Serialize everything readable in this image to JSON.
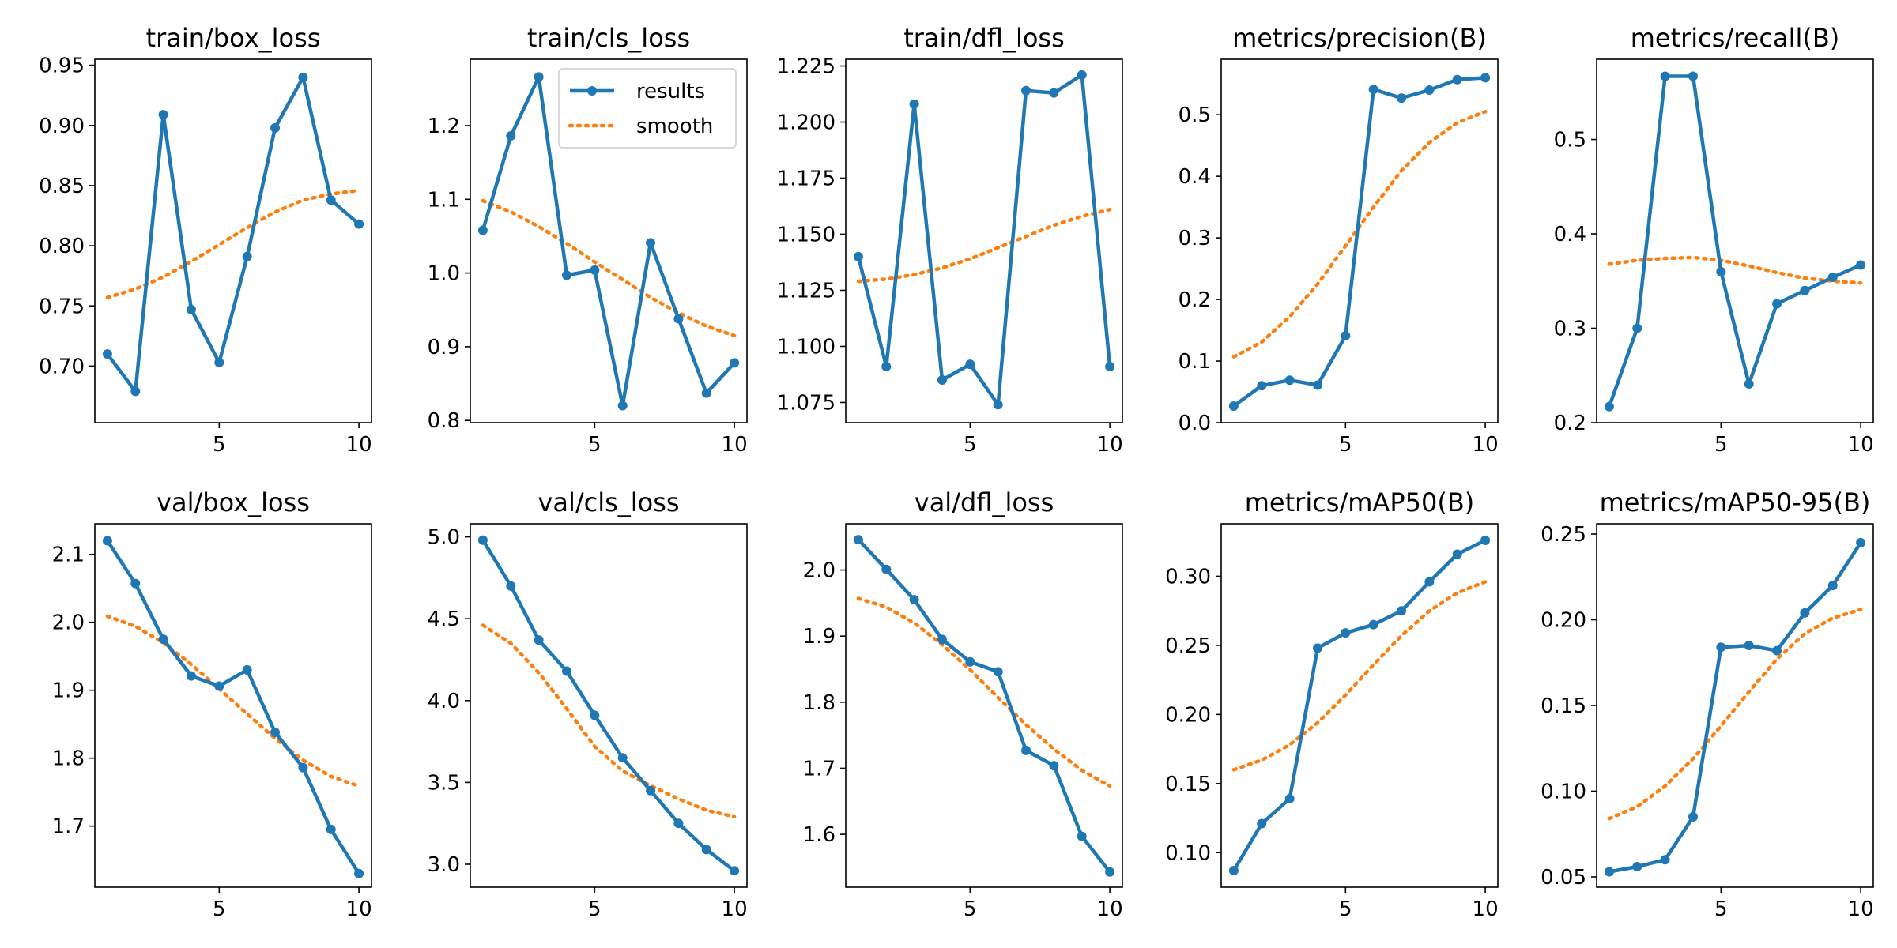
{
  "chart_data": [
    {
      "type": "line",
      "title": "train/box_loss",
      "x": [
        1,
        2,
        3,
        4,
        5,
        6,
        7,
        8,
        9,
        10
      ],
      "xticks": [
        5,
        10
      ],
      "xlim": [
        0.55,
        10.45
      ],
      "ylim": [
        0.653,
        0.955
      ],
      "yticks": [
        0.7,
        0.75,
        0.8,
        0.85,
        0.9,
        0.95
      ],
      "ytick_labels": [
        "0.70",
        "0.75",
        "0.80",
        "0.85",
        "0.90",
        "0.95"
      ],
      "series": [
        {
          "name": "results",
          "values": [
            0.71,
            0.679,
            0.909,
            0.747,
            0.703,
            0.791,
            0.898,
            0.94,
            0.838,
            0.818
          ]
        },
        {
          "name": "smooth",
          "values": [
            0.757,
            0.764,
            0.774,
            0.787,
            0.801,
            0.815,
            0.828,
            0.838,
            0.843,
            0.846
          ]
        }
      ]
    },
    {
      "type": "line",
      "title": "train/cls_loss",
      "x": [
        1,
        2,
        3,
        4,
        5,
        6,
        7,
        8,
        9,
        10
      ],
      "xticks": [
        5,
        10
      ],
      "xlim": [
        0.55,
        10.45
      ],
      "ylim": [
        0.797,
        1.29
      ],
      "yticks": [
        0.8,
        0.9,
        1.0,
        1.1,
        1.2
      ],
      "ytick_labels": [
        "0.8",
        "0.9",
        "1.0",
        "1.1",
        "1.2"
      ],
      "legend": {
        "entries": [
          "results",
          "smooth"
        ],
        "placement": "top-right"
      },
      "series": [
        {
          "name": "results",
          "values": [
            1.058,
            1.186,
            1.266,
            0.997,
            1.004,
            0.82,
            1.041,
            0.938,
            0.837,
            0.878
          ]
        },
        {
          "name": "smooth",
          "values": [
            1.098,
            1.083,
            1.063,
            1.04,
            1.015,
            0.991,
            0.967,
            0.946,
            0.928,
            0.915
          ]
        }
      ]
    },
    {
      "type": "line",
      "title": "train/dfl_loss",
      "x": [
        1,
        2,
        3,
        4,
        5,
        6,
        7,
        8,
        9,
        10
      ],
      "xticks": [
        5,
        10
      ],
      "xlim": [
        0.55,
        10.45
      ],
      "ylim": [
        1.066,
        1.228
      ],
      "yticks": [
        1.075,
        1.1,
        1.125,
        1.15,
        1.175,
        1.2,
        1.225
      ],
      "ytick_labels": [
        "1.075",
        "1.100",
        "1.125",
        "1.150",
        "1.175",
        "1.200",
        "1.225"
      ],
      "series": [
        {
          "name": "results",
          "values": [
            1.14,
            1.091,
            1.208,
            1.085,
            1.092,
            1.074,
            1.214,
            1.213,
            1.221,
            1.091
          ]
        },
        {
          "name": "smooth",
          "values": [
            1.129,
            1.13,
            1.132,
            1.135,
            1.139,
            1.144,
            1.149,
            1.154,
            1.158,
            1.161
          ]
        }
      ]
    },
    {
      "type": "line",
      "title": "metrics/precision(B)",
      "x": [
        1,
        2,
        3,
        4,
        5,
        6,
        7,
        8,
        9,
        10
      ],
      "xticks": [
        5,
        10
      ],
      "xlim": [
        0.55,
        10.45
      ],
      "ylim": [
        0.0,
        0.59
      ],
      "yticks": [
        0.0,
        0.1,
        0.2,
        0.3,
        0.4,
        0.5
      ],
      "ytick_labels": [
        "0.0",
        "0.1",
        "0.2",
        "0.3",
        "0.4",
        "0.5"
      ],
      "series": [
        {
          "name": "results",
          "values": [
            0.027,
            0.06,
            0.069,
            0.061,
            0.141,
            0.541,
            0.527,
            0.54,
            0.557,
            0.56
          ]
        },
        {
          "name": "smooth",
          "values": [
            0.107,
            0.131,
            0.172,
            0.225,
            0.287,
            0.35,
            0.409,
            0.455,
            0.487,
            0.505
          ]
        }
      ]
    },
    {
      "type": "line",
      "title": "metrics/recall(B)",
      "x": [
        1,
        2,
        3,
        4,
        5,
        6,
        7,
        8,
        9,
        10
      ],
      "xticks": [
        5,
        10
      ],
      "xlim": [
        0.55,
        10.45
      ],
      "ylim": [
        0.2,
        0.585
      ],
      "yticks": [
        0.2,
        0.3,
        0.4,
        0.5
      ],
      "ytick_labels": [
        "0.2",
        "0.3",
        "0.4",
        "0.5"
      ],
      "series": [
        {
          "name": "results",
          "values": [
            0.217,
            0.3,
            0.567,
            0.567,
            0.36,
            0.241,
            0.326,
            0.34,
            0.354,
            0.367
          ]
        },
        {
          "name": "smooth",
          "values": [
            0.368,
            0.372,
            0.374,
            0.375,
            0.372,
            0.366,
            0.359,
            0.353,
            0.35,
            0.348
          ]
        }
      ]
    },
    {
      "type": "line",
      "title": "val/box_loss",
      "x": [
        1,
        2,
        3,
        4,
        5,
        6,
        7,
        8,
        9,
        10
      ],
      "xticks": [
        5,
        10
      ],
      "xlim": [
        0.55,
        10.45
      ],
      "ylim": [
        1.61,
        2.145
      ],
      "yticks": [
        1.7,
        1.8,
        1.9,
        2.0,
        2.1
      ],
      "ytick_labels": [
        "1.7",
        "1.8",
        "1.9",
        "2.0",
        "2.1"
      ],
      "series": [
        {
          "name": "results",
          "values": [
            2.12,
            2.057,
            1.975,
            1.921,
            1.906,
            1.93,
            1.838,
            1.786,
            1.695,
            1.63
          ]
        },
        {
          "name": "smooth",
          "values": [
            2.009,
            1.994,
            1.97,
            1.938,
            1.902,
            1.865,
            1.829,
            1.797,
            1.773,
            1.759
          ]
        }
      ]
    },
    {
      "type": "line",
      "title": "val/cls_loss",
      "x": [
        1,
        2,
        3,
        4,
        5,
        6,
        7,
        8,
        9,
        10
      ],
      "xticks": [
        5,
        10
      ],
      "xlim": [
        0.55,
        10.45
      ],
      "ylim": [
        2.86,
        5.08
      ],
      "yticks": [
        3.0,
        3.5,
        4.0,
        4.5,
        5.0
      ],
      "ytick_labels": [
        "3.0",
        "3.5",
        "4.0",
        "4.5",
        "5.0"
      ],
      "series": [
        {
          "name": "results",
          "values": [
            4.98,
            4.7,
            4.37,
            4.18,
            3.91,
            3.65,
            3.45,
            3.25,
            3.09,
            2.96
          ]
        },
        {
          "name": "smooth",
          "values": [
            4.46,
            4.35,
            4.17,
            3.95,
            3.72,
            3.57,
            3.48,
            3.4,
            3.33,
            3.29
          ]
        }
      ]
    },
    {
      "type": "line",
      "title": "val/dfl_loss",
      "x": [
        1,
        2,
        3,
        4,
        5,
        6,
        7,
        8,
        9,
        10
      ],
      "xticks": [
        5,
        10
      ],
      "xlim": [
        0.55,
        10.45
      ],
      "ylim": [
        1.52,
        2.07
      ],
      "yticks": [
        1.6,
        1.7,
        1.8,
        1.9,
        2.0
      ],
      "ytick_labels": [
        "1.6",
        "1.7",
        "1.8",
        "1.9",
        "2.0"
      ],
      "series": [
        {
          "name": "results",
          "values": [
            2.046,
            2.001,
            1.955,
            1.895,
            1.861,
            1.846,
            1.727,
            1.704,
            1.597,
            1.543
          ]
        },
        {
          "name": "smooth",
          "values": [
            1.957,
            1.944,
            1.92,
            1.887,
            1.849,
            1.807,
            1.766,
            1.729,
            1.697,
            1.673
          ]
        }
      ]
    },
    {
      "type": "line",
      "title": "metrics/mAP50(B)",
      "x": [
        1,
        2,
        3,
        4,
        5,
        6,
        7,
        8,
        9,
        10
      ],
      "xticks": [
        5,
        10
      ],
      "xlim": [
        0.55,
        10.45
      ],
      "ylim": [
        0.075,
        0.338
      ],
      "yticks": [
        0.1,
        0.15,
        0.2,
        0.25,
        0.3
      ],
      "ytick_labels": [
        "0.10",
        "0.15",
        "0.20",
        "0.25",
        "0.30"
      ],
      "series": [
        {
          "name": "results",
          "values": [
            0.087,
            0.121,
            0.139,
            0.248,
            0.259,
            0.265,
            0.275,
            0.296,
            0.316,
            0.326
          ]
        },
        {
          "name": "smooth",
          "values": [
            0.16,
            0.167,
            0.178,
            0.194,
            0.214,
            0.236,
            0.257,
            0.275,
            0.288,
            0.296
          ]
        }
      ]
    },
    {
      "type": "line",
      "title": "metrics/mAP50-95(B)",
      "x": [
        1,
        2,
        3,
        4,
        5,
        6,
        7,
        8,
        9,
        10
      ],
      "xticks": [
        5,
        10
      ],
      "xlim": [
        0.55,
        10.45
      ],
      "ylim": [
        0.044,
        0.256
      ],
      "yticks": [
        0.05,
        0.1,
        0.15,
        0.2,
        0.25
      ],
      "ytick_labels": [
        "0.05",
        "0.10",
        "0.15",
        "0.20",
        "0.25"
      ],
      "series": [
        {
          "name": "results",
          "values": [
            0.053,
            0.056,
            0.06,
            0.085,
            0.184,
            0.185,
            0.182,
            0.204,
            0.22,
            0.245
          ]
        },
        {
          "name": "smooth",
          "values": [
            0.084,
            0.091,
            0.103,
            0.119,
            0.138,
            0.158,
            0.177,
            0.192,
            0.201,
            0.206
          ]
        }
      ]
    }
  ],
  "colors": {
    "results": "#1f77b4",
    "smooth": "#ff7f0e",
    "axes": "#000000"
  },
  "legend_labels": {
    "results": "results",
    "smooth": "smooth"
  }
}
